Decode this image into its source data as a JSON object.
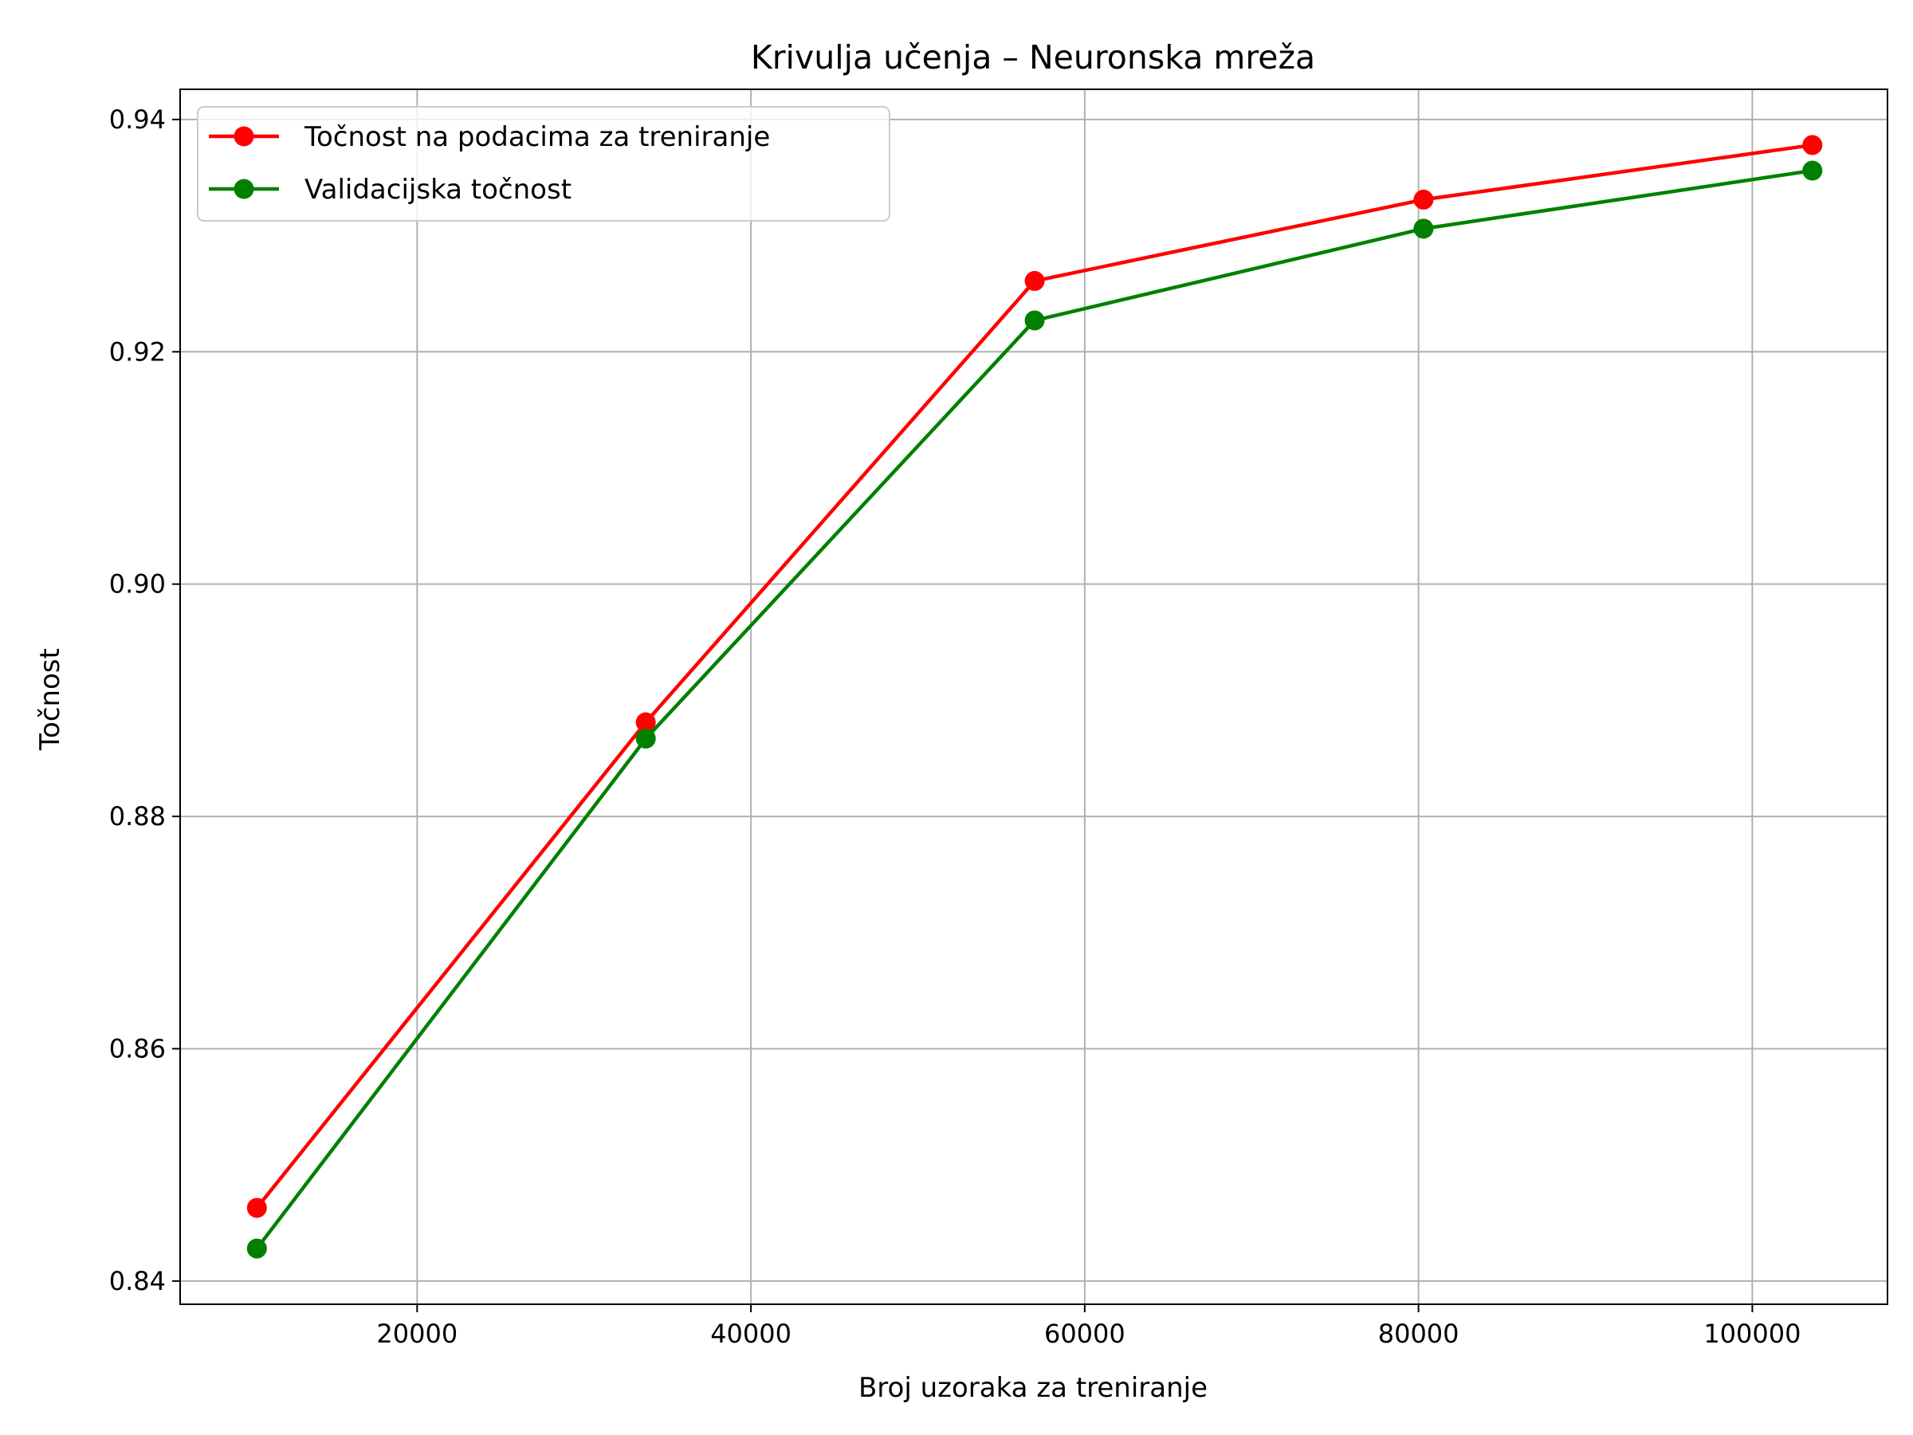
{
  "chart_data": {
    "type": "line",
    "title": "Krivulja učenja – Neuronska mreža",
    "xlabel": "Broj uzoraka za treniranje",
    "ylabel": "Točnost",
    "xlim": [
      5800,
      108100
    ],
    "ylim": [
      0.838,
      0.9426
    ],
    "xticks": [
      20000,
      40000,
      60000,
      80000,
      100000
    ],
    "yticks": [
      0.84,
      0.86,
      0.88,
      0.9,
      0.92,
      0.94
    ],
    "ytick_labels": [
      "0.84",
      "0.86",
      "0.88",
      "0.90",
      "0.92",
      "0.94"
    ],
    "grid": true,
    "legend_position": "top-left",
    "x": [
      10400,
      33700,
      57000,
      80300,
      103600
    ],
    "series": [
      {
        "name": "Točnost na podacima za treniranje",
        "color": "#ff0000",
        "values": [
          0.8463,
          0.8881,
          0.9261,
          0.9331,
          0.9378
        ]
      },
      {
        "name": "Validacijska točnost",
        "color": "#008000",
        "values": [
          0.8428,
          0.8867,
          0.9227,
          0.9306,
          0.9356
        ]
      }
    ]
  }
}
